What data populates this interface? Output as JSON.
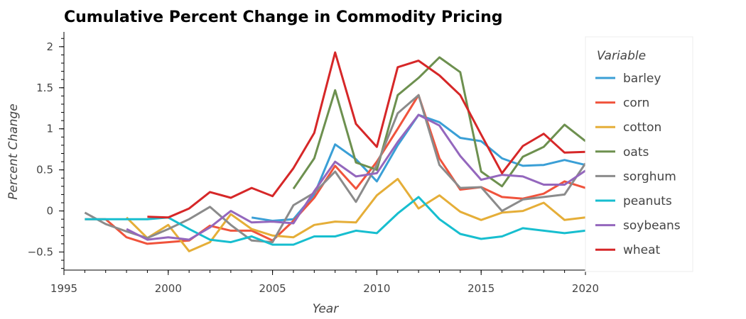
{
  "chart_data": {
    "type": "line",
    "title": "Cumulative Percent Change in Commodity Pricing",
    "xlabel": "Year",
    "ylabel": "Percent Change",
    "xlim": [
      1995,
      2020
    ],
    "ylim": [
      -0.72,
      2.18
    ],
    "x_ticks": [
      1995,
      2000,
      2005,
      2010,
      2015,
      2020
    ],
    "y_ticks": [
      -0.5,
      0,
      0.5,
      1,
      1.5,
      2
    ],
    "y_tick_labels": [
      "−0.5",
      "0",
      "0.5",
      "1",
      "1.5",
      "2"
    ],
    "grid": false,
    "legend": {
      "title": "Variable",
      "position": "right"
    },
    "series": [
      {
        "name": "barley",
        "color": "#3a9fd6",
        "points": [
          [
            2004,
            -0.08
          ],
          [
            2005,
            -0.12
          ],
          [
            2006,
            -0.1
          ],
          [
            2007,
            0.2
          ],
          [
            2008,
            0.81
          ],
          [
            2009,
            0.63
          ],
          [
            2010,
            0.36
          ],
          [
            2011,
            0.8
          ],
          [
            2012,
            1.17
          ],
          [
            2013,
            1.08
          ],
          [
            2014,
            0.89
          ],
          [
            2015,
            0.85
          ],
          [
            2016,
            0.64
          ],
          [
            2017,
            0.55
          ],
          [
            2018,
            0.56
          ],
          [
            2019,
            0.62
          ],
          [
            2020,
            0.56
          ]
        ]
      },
      {
        "name": "corn",
        "color": "#f0533c",
        "points": [
          [
            1996,
            -0.1
          ],
          [
            1997,
            -0.1
          ],
          [
            1998,
            -0.32
          ],
          [
            1999,
            -0.4
          ],
          [
            2000,
            -0.38
          ],
          [
            2001,
            -0.36
          ],
          [
            2002,
            -0.18
          ],
          [
            2003,
            -0.24
          ],
          [
            2004,
            -0.24
          ],
          [
            2005,
            -0.36
          ],
          [
            2006,
            -0.12
          ],
          [
            2007,
            0.16
          ],
          [
            2008,
            0.55
          ],
          [
            2009,
            0.27
          ],
          [
            2010,
            0.6
          ],
          [
            2011,
            1.0
          ],
          [
            2012,
            1.41
          ],
          [
            2013,
            0.64
          ],
          [
            2014,
            0.26
          ],
          [
            2015,
            0.29
          ],
          [
            2016,
            0.17
          ],
          [
            2017,
            0.15
          ],
          [
            2018,
            0.21
          ],
          [
            2019,
            0.36
          ],
          [
            2020,
            0.28
          ]
        ]
      },
      {
        "name": "cotton",
        "color": "#e5ae38",
        "points": [
          [
            1998,
            -0.08
          ],
          [
            1999,
            -0.33
          ],
          [
            2000,
            -0.17
          ],
          [
            2001,
            -0.49
          ],
          [
            2002,
            -0.38
          ],
          [
            2003,
            -0.04
          ],
          [
            2004,
            -0.22
          ],
          [
            2005,
            -0.3
          ],
          [
            2006,
            -0.32
          ],
          [
            2007,
            -0.17
          ],
          [
            2008,
            -0.13
          ],
          [
            2009,
            -0.14
          ],
          [
            2010,
            0.19
          ],
          [
            2011,
            0.39
          ],
          [
            2012,
            0.03
          ],
          [
            2013,
            0.19
          ],
          [
            2014,
            -0.01
          ],
          [
            2015,
            -0.11
          ],
          [
            2016,
            -0.02
          ],
          [
            2017,
            0.0
          ],
          [
            2018,
            0.1
          ],
          [
            2019,
            -0.11
          ],
          [
            2020,
            -0.08
          ]
        ]
      },
      {
        "name": "oats",
        "color": "#6d904f",
        "points": [
          [
            2006,
            0.27
          ],
          [
            2007,
            0.64
          ],
          [
            2008,
            1.47
          ],
          [
            2009,
            0.59
          ],
          [
            2010,
            0.5
          ],
          [
            2011,
            1.41
          ],
          [
            2012,
            1.62
          ],
          [
            2013,
            1.87
          ],
          [
            2014,
            1.69
          ],
          [
            2015,
            0.48
          ],
          [
            2016,
            0.3
          ],
          [
            2017,
            0.66
          ],
          [
            2018,
            0.78
          ],
          [
            2019,
            1.05
          ],
          [
            2020,
            0.85
          ]
        ]
      },
      {
        "name": "sorghum",
        "color": "#8b8b8b",
        "points": [
          [
            1996,
            -0.02
          ],
          [
            1997,
            -0.16
          ],
          [
            1998,
            -0.25
          ],
          [
            1999,
            -0.33
          ],
          [
            2000,
            -0.22
          ],
          [
            2001,
            -0.1
          ],
          [
            2002,
            0.05
          ],
          [
            2003,
            -0.17
          ],
          [
            2004,
            -0.36
          ],
          [
            2005,
            -0.38
          ],
          [
            2006,
            0.07
          ],
          [
            2007,
            0.22
          ],
          [
            2008,
            0.48
          ],
          [
            2009,
            0.11
          ],
          [
            2010,
            0.56
          ],
          [
            2011,
            1.19
          ],
          [
            2012,
            1.41
          ],
          [
            2013,
            0.56
          ],
          [
            2014,
            0.28
          ],
          [
            2015,
            0.29
          ],
          [
            2016,
            0.0
          ],
          [
            2017,
            0.14
          ],
          [
            2018,
            0.17
          ],
          [
            2019,
            0.2
          ],
          [
            2020,
            0.58
          ]
        ]
      },
      {
        "name": "peanuts",
        "color": "#17becf",
        "points": [
          [
            1996,
            -0.1
          ],
          [
            1997,
            -0.1
          ],
          [
            1998,
            -0.1
          ],
          [
            1999,
            -0.1
          ],
          [
            2000,
            -0.08
          ],
          [
            2001,
            -0.22
          ],
          [
            2002,
            -0.35
          ],
          [
            2003,
            -0.38
          ],
          [
            2004,
            -0.31
          ],
          [
            2005,
            -0.41
          ],
          [
            2006,
            -0.41
          ],
          [
            2007,
            -0.31
          ],
          [
            2008,
            -0.31
          ],
          [
            2009,
            -0.24
          ],
          [
            2010,
            -0.27
          ],
          [
            2011,
            -0.03
          ],
          [
            2012,
            0.17
          ],
          [
            2013,
            -0.1
          ],
          [
            2014,
            -0.28
          ],
          [
            2015,
            -0.34
          ],
          [
            2016,
            -0.31
          ],
          [
            2017,
            -0.21
          ],
          [
            2018,
            -0.24
          ],
          [
            2019,
            -0.27
          ],
          [
            2020,
            -0.24
          ]
        ]
      },
      {
        "name": "soybeans",
        "color": "#9467bd",
        "points": [
          [
            1998,
            -0.22
          ],
          [
            1999,
            -0.35
          ],
          [
            2000,
            -0.32
          ],
          [
            2001,
            -0.35
          ],
          [
            2002,
            -0.2
          ],
          [
            2003,
            0.0
          ],
          [
            2004,
            -0.14
          ],
          [
            2005,
            -0.13
          ],
          [
            2006,
            -0.15
          ],
          [
            2007,
            0.24
          ],
          [
            2008,
            0.6
          ],
          [
            2009,
            0.42
          ],
          [
            2010,
            0.46
          ],
          [
            2011,
            0.84
          ],
          [
            2012,
            1.17
          ],
          [
            2013,
            1.04
          ],
          [
            2014,
            0.67
          ],
          [
            2015,
            0.38
          ],
          [
            2016,
            0.44
          ],
          [
            2017,
            0.42
          ],
          [
            2018,
            0.32
          ],
          [
            2019,
            0.32
          ],
          [
            2020,
            0.49
          ]
        ]
      },
      {
        "name": "wheat",
        "color": "#d62728",
        "points": [
          [
            1999,
            -0.07
          ],
          [
            2000,
            -0.08
          ],
          [
            2001,
            0.03
          ],
          [
            2002,
            0.23
          ],
          [
            2003,
            0.16
          ],
          [
            2004,
            0.28
          ],
          [
            2005,
            0.18
          ],
          [
            2006,
            0.52
          ],
          [
            2007,
            0.95
          ],
          [
            2008,
            1.93
          ],
          [
            2009,
            1.06
          ],
          [
            2010,
            0.78
          ],
          [
            2011,
            1.75
          ],
          [
            2012,
            1.83
          ],
          [
            2013,
            1.65
          ],
          [
            2014,
            1.41
          ],
          [
            2015,
            0.93
          ],
          [
            2016,
            0.46
          ],
          [
            2017,
            0.79
          ],
          [
            2018,
            0.94
          ],
          [
            2019,
            0.71
          ],
          [
            2020,
            0.72
          ]
        ]
      }
    ]
  }
}
